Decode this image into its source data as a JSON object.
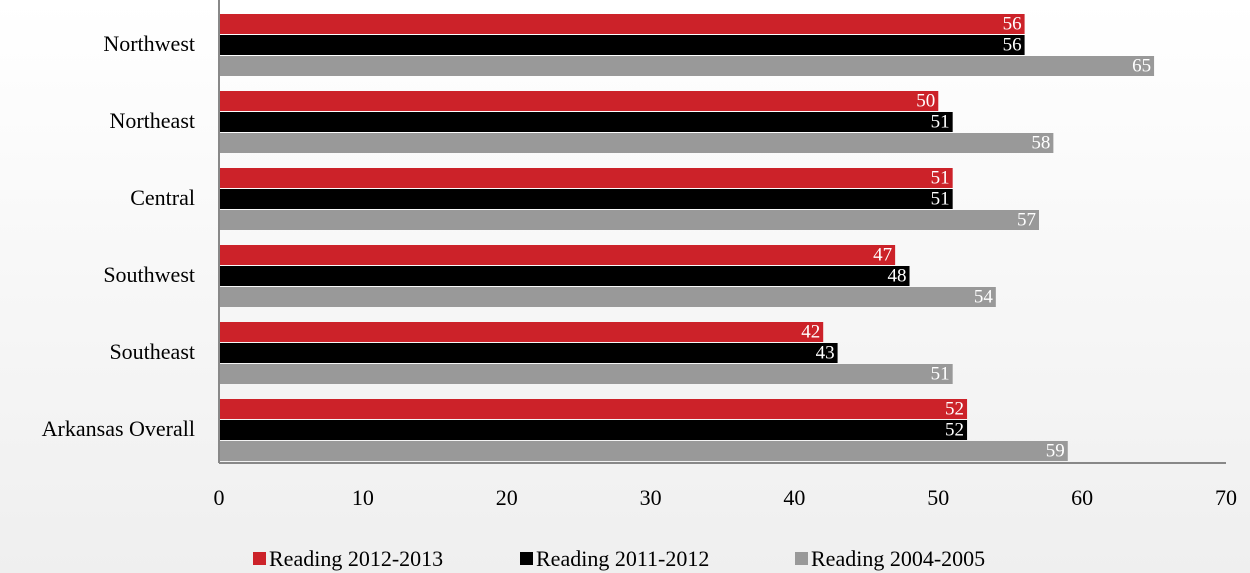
{
  "chart_data": {
    "type": "hbar",
    "categories": [
      "Northwest",
      "Northeast",
      "Central",
      "Southwest",
      "Southeast",
      "Arkansas Overall"
    ],
    "series": [
      {
        "name": "Reading 2012-2013",
        "color": "#cc2229",
        "values": [
          56,
          50,
          51,
          47,
          42,
          52
        ]
      },
      {
        "name": "Reading 2011-2012",
        "color": "#000000",
        "values": [
          56,
          51,
          51,
          48,
          43,
          52
        ]
      },
      {
        "name": "Reading 2004-2005",
        "color": "#999999",
        "values": [
          65,
          58,
          57,
          54,
          51,
          59
        ]
      }
    ],
    "xlim": [
      0,
      70
    ],
    "xticks": [
      0,
      10,
      20,
      30,
      40,
      50,
      60,
      70
    ],
    "legend": "bottom"
  }
}
